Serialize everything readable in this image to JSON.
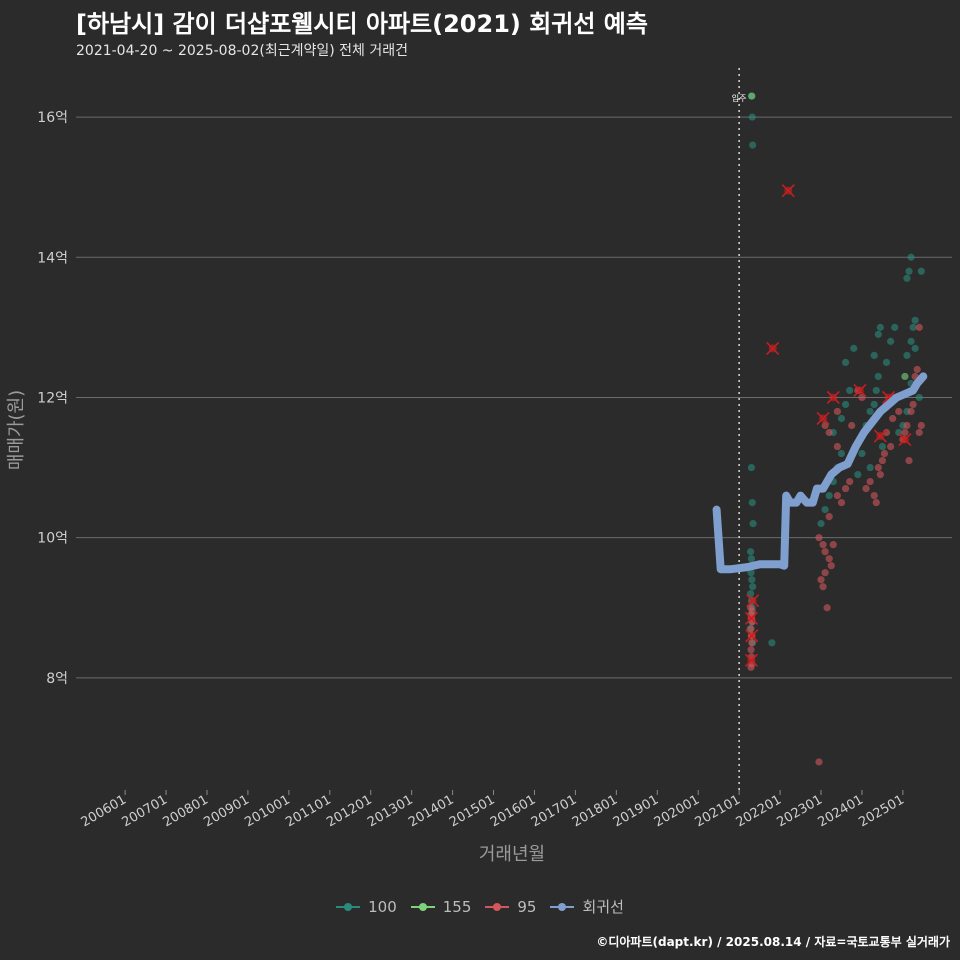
{
  "header": {
    "title": "[하남시] 감이 더샵포웰시티 아파트(2021) 회귀선 예측",
    "subtitle": "2021-04-20 ~ 2025-08-02(최근계약일) 전체 거래건"
  },
  "footer": {
    "credit": "©디아파트(dapt.kr) / 2025.08.14 / 자료=국토교통부 실거래가"
  },
  "chart_data": {
    "type": "scatter",
    "xlabel": "거래년월",
    "ylabel": "매매가(원)",
    "x_range": [
      2004.8,
      2026.2
    ],
    "y_range": [
      6.4,
      16.7
    ],
    "x_ticks": [
      "200601",
      "200701",
      "200801",
      "200901",
      "201001",
      "201101",
      "201201",
      "201301",
      "201401",
      "201501",
      "201601",
      "201701",
      "201801",
      "201901",
      "202001",
      "202101",
      "202201",
      "202301",
      "202401",
      "202501"
    ],
    "y_ticks": [
      {
        "value": 8,
        "label": "8억"
      },
      {
        "value": 10,
        "label": "10억"
      },
      {
        "value": 12,
        "label": "12억"
      },
      {
        "value": 14,
        "label": "14억"
      },
      {
        "value": 16,
        "label": "16억"
      }
    ],
    "annotation": {
      "label": "입주",
      "x": 2021.0
    },
    "colors": {
      "100": "#2a8a7c",
      "155": "#7ed37a",
      "95": "#d2575c",
      "regression": "#7f9fcf",
      "highlight": "#ff1f1f"
    },
    "legend": [
      {
        "key": "100",
        "label": "100"
      },
      {
        "key": "155",
        "label": "155"
      },
      {
        "key": "95",
        "label": "95"
      },
      {
        "key": "regression",
        "label": "회귀선"
      }
    ],
    "series": [
      {
        "name": "100",
        "points": [
          [
            2021.3,
            16.3
          ],
          [
            2021.32,
            16.0
          ],
          [
            2021.33,
            15.6
          ],
          [
            2021.3,
            11.0
          ],
          [
            2021.32,
            10.5
          ],
          [
            2021.34,
            10.2
          ],
          [
            2021.28,
            9.8
          ],
          [
            2021.3,
            9.7
          ],
          [
            2021.32,
            9.6
          ],
          [
            2021.29,
            9.5
          ],
          [
            2021.31,
            9.4
          ],
          [
            2021.33,
            9.3
          ],
          [
            2021.28,
            9.2
          ],
          [
            2021.3,
            9.1
          ],
          [
            2021.32,
            9.0
          ],
          [
            2021.29,
            8.9
          ],
          [
            2021.31,
            8.8
          ],
          [
            2021.27,
            8.7
          ],
          [
            2021.3,
            8.6
          ],
          [
            2021.33,
            8.5
          ],
          [
            2021.8,
            8.5
          ],
          [
            2023.1,
            10.4
          ],
          [
            2023.2,
            10.6
          ],
          [
            2023.3,
            10.8
          ],
          [
            2023.4,
            11.0
          ],
          [
            2023.5,
            11.2
          ],
          [
            2023.3,
            11.5
          ],
          [
            2023.5,
            11.7
          ],
          [
            2023.6,
            11.9
          ],
          [
            2023.7,
            12.1
          ],
          [
            2023.6,
            12.5
          ],
          [
            2023.8,
            12.7
          ],
          [
            2024.1,
            11.6
          ],
          [
            2024.2,
            11.8
          ],
          [
            2024.3,
            11.9
          ],
          [
            2024.35,
            12.1
          ],
          [
            2024.4,
            12.3
          ],
          [
            2024.3,
            12.6
          ],
          [
            2024.4,
            12.9
          ],
          [
            2024.45,
            13.0
          ],
          [
            2024.6,
            12.5
          ],
          [
            2024.7,
            12.8
          ],
          [
            2024.8,
            13.0
          ],
          [
            2024.9,
            11.5
          ],
          [
            2025.0,
            11.6
          ],
          [
            2025.1,
            11.8
          ],
          [
            2025.2,
            12.2
          ],
          [
            2025.1,
            12.6
          ],
          [
            2025.2,
            12.8
          ],
          [
            2025.25,
            13.0
          ],
          [
            2025.3,
            13.1
          ],
          [
            2025.1,
            13.7
          ],
          [
            2025.15,
            13.8
          ],
          [
            2025.2,
            14.0
          ],
          [
            2025.45,
            13.8
          ],
          [
            2025.3,
            12.7
          ],
          [
            2025.4,
            12.0
          ],
          [
            2024.0,
            11.2
          ],
          [
            2024.5,
            11.3
          ],
          [
            2023.9,
            10.9
          ],
          [
            2023.0,
            10.2
          ],
          [
            2024.2,
            11.0
          ],
          [
            2023.7,
            11.1
          ]
        ]
      },
      {
        "name": "155",
        "points": [
          [
            2021.31,
            16.3
          ],
          [
            2025.05,
            12.3
          ]
        ]
      },
      {
        "name": "95",
        "points": [
          [
            2021.28,
            9.0
          ],
          [
            2021.3,
            8.9
          ],
          [
            2021.32,
            8.8
          ],
          [
            2021.29,
            8.7
          ],
          [
            2021.3,
            8.6
          ],
          [
            2021.31,
            8.5
          ],
          [
            2021.29,
            8.4
          ],
          [
            2021.3,
            8.3
          ],
          [
            2021.31,
            8.2
          ],
          [
            2021.29,
            8.15
          ],
          [
            2021.3,
            8.85
          ],
          [
            2021.32,
            8.95
          ],
          [
            2022.95,
            10.0
          ],
          [
            2023.05,
            9.9
          ],
          [
            2023.1,
            9.8
          ],
          [
            2023.2,
            9.7
          ],
          [
            2023.25,
            9.6
          ],
          [
            2023.0,
            9.4
          ],
          [
            2023.05,
            9.3
          ],
          [
            2023.1,
            9.5
          ],
          [
            2023.15,
            9.0
          ],
          [
            2023.3,
            9.9
          ],
          [
            2023.2,
            10.3
          ],
          [
            2023.4,
            10.6
          ],
          [
            2023.5,
            10.5
          ],
          [
            2023.1,
            11.6
          ],
          [
            2023.2,
            11.5
          ],
          [
            2023.4,
            11.8
          ],
          [
            2023.6,
            10.7
          ],
          [
            2023.7,
            10.8
          ],
          [
            2023.9,
            12.1
          ],
          [
            2024.0,
            12.0
          ],
          [
            2024.1,
            10.7
          ],
          [
            2024.2,
            10.8
          ],
          [
            2024.3,
            10.6
          ],
          [
            2024.35,
            10.5
          ],
          [
            2024.4,
            11.0
          ],
          [
            2024.5,
            11.1
          ],
          [
            2024.55,
            11.2
          ],
          [
            2024.6,
            11.5
          ],
          [
            2024.7,
            11.3
          ],
          [
            2024.8,
            12.0
          ],
          [
            2024.9,
            11.8
          ],
          [
            2025.0,
            11.4
          ],
          [
            2025.1,
            11.6
          ],
          [
            2025.2,
            11.8
          ],
          [
            2025.25,
            11.9
          ],
          [
            2025.3,
            12.3
          ],
          [
            2025.35,
            12.4
          ],
          [
            2025.4,
            11.5
          ],
          [
            2025.45,
            11.6
          ],
          [
            2025.15,
            11.1
          ],
          [
            2025.4,
            13.0
          ],
          [
            2022.95,
            6.8
          ],
          [
            2023.4,
            11.3
          ],
          [
            2024.45,
            10.9
          ],
          [
            2024.75,
            11.7
          ],
          [
            2025.05,
            11.5
          ],
          [
            2023.75,
            11.6
          ]
        ]
      }
    ],
    "highlights": [
      [
        2021.33,
        9.1
      ],
      [
        2021.3,
        8.85
      ],
      [
        2021.31,
        8.6
      ],
      [
        2021.3,
        8.25
      ],
      [
        2021.82,
        12.7
      ],
      [
        2022.2,
        14.95
      ],
      [
        2023.05,
        11.7
      ],
      [
        2023.3,
        12.0
      ],
      [
        2023.95,
        12.1
      ],
      [
        2024.45,
        11.45
      ],
      [
        2024.65,
        12.0
      ],
      [
        2025.05,
        11.4
      ]
    ],
    "regression": [
      [
        2020.45,
        10.4
      ],
      [
        2020.55,
        9.55
      ],
      [
        2020.8,
        9.55
      ],
      [
        2021.2,
        9.58
      ],
      [
        2021.5,
        9.62
      ],
      [
        2022.0,
        9.62
      ],
      [
        2022.1,
        9.6
      ],
      [
        2022.15,
        10.6
      ],
      [
        2022.25,
        10.5
      ],
      [
        2022.4,
        10.5
      ],
      [
        2022.5,
        10.6
      ],
      [
        2022.65,
        10.5
      ],
      [
        2022.8,
        10.5
      ],
      [
        2022.9,
        10.7
      ],
      [
        2023.05,
        10.7
      ],
      [
        2023.25,
        10.9
      ],
      [
        2023.45,
        11.0
      ],
      [
        2023.65,
        11.05
      ],
      [
        2023.85,
        11.3
      ],
      [
        2024.05,
        11.5
      ],
      [
        2024.25,
        11.65
      ],
      [
        2024.45,
        11.8
      ],
      [
        2024.65,
        11.9
      ],
      [
        2024.85,
        12.0
      ],
      [
        2025.05,
        12.05
      ],
      [
        2025.25,
        12.1
      ],
      [
        2025.35,
        12.2
      ],
      [
        2025.5,
        12.3
      ]
    ]
  }
}
